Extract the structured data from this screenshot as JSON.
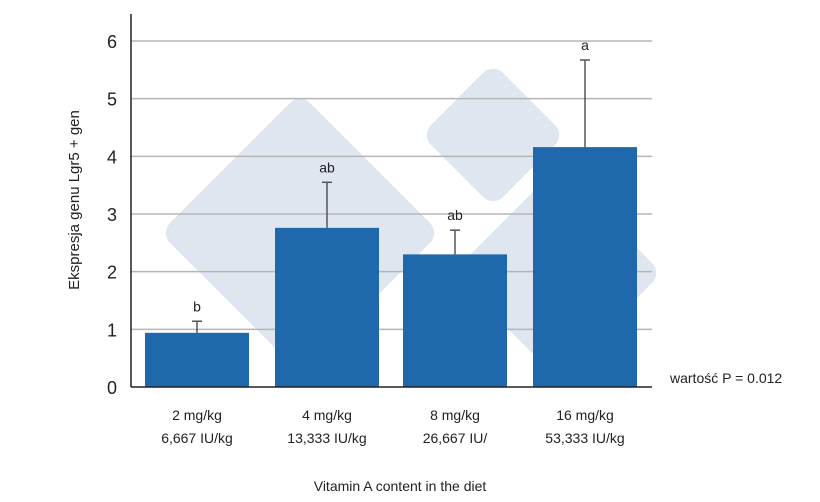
{
  "chart_data": {
    "type": "bar",
    "categories": [
      {
        "line1": "2 mg/kg",
        "line2": "6,667 IU/kg"
      },
      {
        "line1": "4 mg/kg",
        "line2": "13,333 IU/kg"
      },
      {
        "line1": "8 mg/kg",
        "line2": "26,667 IU/"
      },
      {
        "line1": "16 mg/kg",
        "line2": "53,333 IU/kg"
      }
    ],
    "values": [
      0.94,
      2.76,
      2.3,
      4.16
    ],
    "error_upper": [
      1.14,
      3.55,
      2.72,
      5.67
    ],
    "significance_labels": [
      "b",
      "ab",
      "ab",
      "a"
    ],
    "xlabel": "Vitamin A content in the diet",
    "ylabel": "Ekspresja genu Lgr5 + gen",
    "ylim": [
      0,
      6.5
    ],
    "yticks": [
      "0",
      "1",
      "2",
      "3",
      "4",
      "5",
      "6"
    ],
    "grid": true,
    "annotation": "wartość P = 0.012",
    "bar_color": "#2068ac",
    "watermark_color": "#dfe6f0"
  }
}
